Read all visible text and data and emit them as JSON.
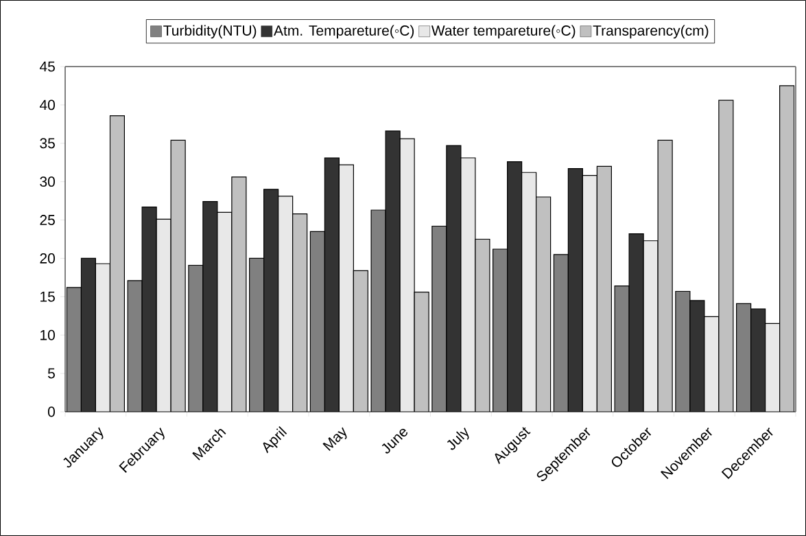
{
  "chart_data": {
    "type": "bar",
    "categories": [
      "January",
      "February",
      "March",
      "April",
      "May",
      "June",
      "July",
      "August",
      "September",
      "October",
      "November",
      "December"
    ],
    "series": [
      {
        "name": "Turbidity(NTU)",
        "color": "#808080",
        "values": [
          16.2,
          17.1,
          19.1,
          20.0,
          23.5,
          26.3,
          24.2,
          21.2,
          20.5,
          16.4,
          15.7,
          14.1
        ]
      },
      {
        "name": "Atm. Tempareture(◦C)",
        "color": "#333333",
        "values": [
          20.0,
          26.7,
          27.4,
          29.0,
          33.1,
          36.6,
          34.7,
          32.6,
          31.7,
          23.2,
          14.5,
          13.4
        ]
      },
      {
        "name": "Water tempareture(◦C)",
        "color": "#e8e8e8",
        "values": [
          19.3,
          25.1,
          26.0,
          28.1,
          32.2,
          35.6,
          33.1,
          31.2,
          30.8,
          22.3,
          12.4,
          11.5
        ]
      },
      {
        "name": "Transparency(cm)",
        "color": "#c0c0c0",
        "values": [
          38.6,
          35.4,
          30.6,
          25.8,
          18.4,
          15.6,
          22.5,
          28.0,
          32.0,
          35.4,
          40.6,
          42.5
        ]
      }
    ],
    "ylim": [
      0,
      45
    ],
    "yticks": [
      0,
      5,
      10,
      15,
      20,
      25,
      30,
      35,
      40,
      45
    ],
    "grid": false,
    "legend": "top"
  }
}
